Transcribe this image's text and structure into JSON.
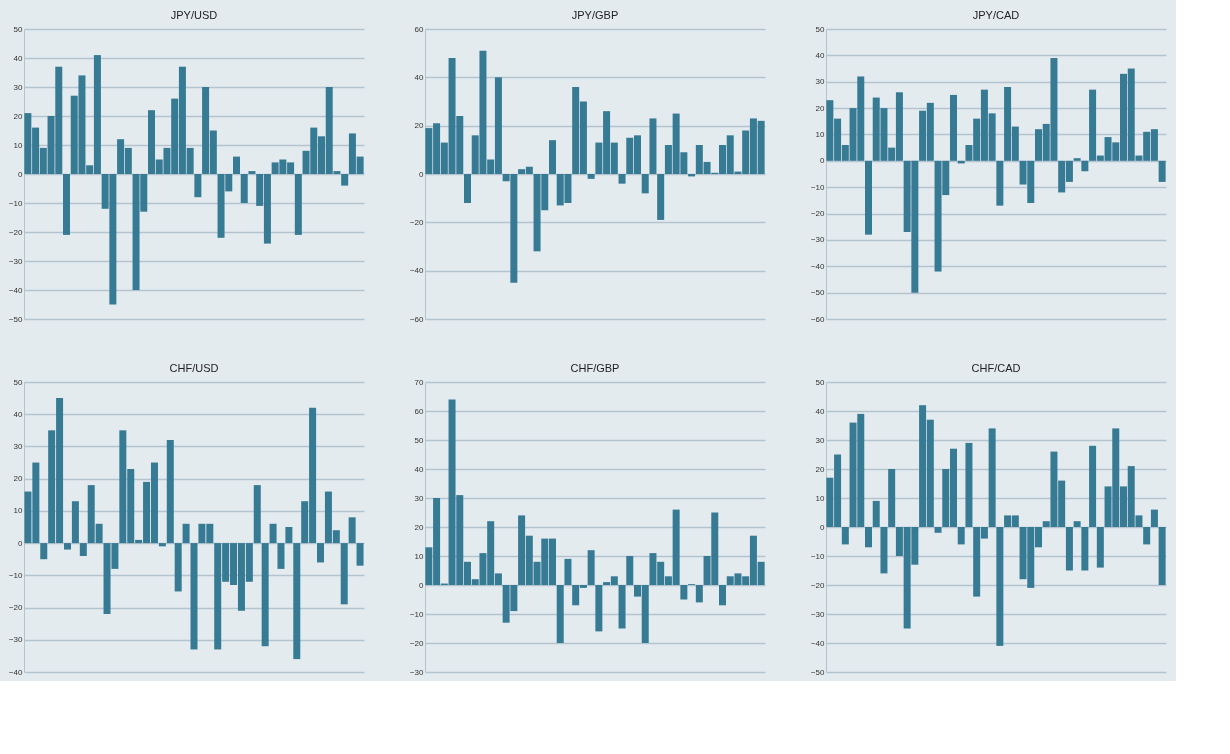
{
  "chart_data": [
    {
      "type": "bar",
      "title": "JPY/USD",
      "categories": [
        null,
        null,
        null,
        null,
        null,
        null,
        null,
        null,
        null,
        null,
        null,
        null,
        null,
        null,
        null,
        null,
        null,
        null,
        null,
        null,
        null,
        null,
        null,
        null,
        null,
        null,
        null,
        null,
        null,
        null,
        null,
        null,
        null,
        null,
        null,
        null,
        null,
        null,
        null,
        null,
        null,
        null,
        null,
        null
      ],
      "series": [
        {
          "color": "#367a94",
          "values": [
            21,
            16,
            9,
            20,
            37,
            -21,
            27,
            34,
            3,
            41,
            -12,
            -45,
            12,
            9,
            -40,
            -13,
            22,
            5,
            9,
            26,
            37,
            9,
            -8,
            30,
            15,
            -22,
            -6,
            6,
            -10,
            1,
            -11,
            -24,
            4,
            5,
            4,
            -21,
            8,
            16,
            13,
            30,
            1,
            -4,
            14,
            6
          ]
        }
      ],
      "ylim": [
        -50,
        50
      ],
      "yticks": [
        -50,
        -40,
        -30,
        -20,
        -10,
        0,
        10,
        20,
        30,
        40,
        50
      ],
      "grid": "y",
      "legend": false
    },
    {
      "type": "bar",
      "title": "JPY/GBP",
      "categories": [
        null,
        null,
        null,
        null,
        null,
        null,
        null,
        null,
        null,
        null,
        null,
        null,
        null,
        null,
        null,
        null,
        null,
        null,
        null,
        null,
        null,
        null,
        null,
        null,
        null,
        null,
        null,
        null,
        null,
        null,
        null,
        null,
        null,
        null,
        null,
        null,
        null,
        null,
        null,
        null,
        null,
        null,
        null,
        null
      ],
      "series": [
        {
          "color": "#367a94",
          "values": [
            19,
            21,
            13,
            48,
            24,
            -12,
            16,
            51,
            6,
            40,
            -3,
            -45,
            2,
            3,
            -32,
            -15,
            14,
            -13,
            -12,
            36,
            30,
            -2,
            13,
            26,
            13,
            -4,
            15,
            16,
            -8,
            23,
            -19,
            12,
            25,
            9,
            -1,
            12,
            5,
            0.5,
            12,
            16,
            1,
            18,
            23,
            22
          ]
        }
      ],
      "ylim": [
        -60,
        60
      ],
      "yticks": [
        -60,
        -40,
        -20,
        0,
        20,
        40,
        60
      ],
      "grid": "y",
      "legend": false
    },
    {
      "type": "bar",
      "title": "JPY/CAD",
      "categories": [
        null,
        null,
        null,
        null,
        null,
        null,
        null,
        null,
        null,
        null,
        null,
        null,
        null,
        null,
        null,
        null,
        null,
        null,
        null,
        null,
        null,
        null,
        null,
        null,
        null,
        null,
        null,
        null,
        null,
        null,
        null,
        null,
        null,
        null,
        null,
        null,
        null,
        null,
        null,
        null,
        null,
        null,
        null,
        null
      ],
      "series": [
        {
          "color": "#367a94",
          "values": [
            23,
            16,
            6,
            20,
            32,
            -28,
            24,
            20,
            5,
            26,
            -27,
            -50,
            19,
            22,
            -42,
            -13,
            25,
            -1,
            6,
            16,
            27,
            18,
            -17,
            28,
            13,
            -9,
            -16,
            12,
            14,
            39,
            -12,
            -8,
            1,
            -4,
            27,
            2,
            9,
            7,
            33,
            35,
            2,
            11,
            12,
            -8
          ]
        }
      ],
      "ylim": [
        -60,
        50
      ],
      "yticks": [
        -60,
        -50,
        -40,
        -30,
        -20,
        -10,
        0,
        10,
        20,
        30,
        40,
        50
      ],
      "grid": "y",
      "legend": false
    },
    {
      "type": "bar",
      "title": "CHF/USD",
      "categories": [
        null,
        null,
        null,
        null,
        null,
        null,
        null,
        null,
        null,
        null,
        null,
        null,
        null,
        null,
        null,
        null,
        null,
        null,
        null,
        null,
        null,
        null,
        null,
        null,
        null,
        null,
        null,
        null,
        null,
        null,
        null,
        null,
        null,
        null,
        null,
        null,
        null,
        null,
        null,
        null,
        null,
        null,
        null
      ],
      "series": [
        {
          "color": "#367a94",
          "values": [
            16,
            25,
            -5,
            35,
            45,
            -2,
            13,
            -4,
            18,
            6,
            -22,
            -8,
            35,
            23,
            1,
            19,
            25,
            -1,
            32,
            -15,
            6,
            -33,
            6,
            6,
            -33,
            -12,
            -13,
            -21,
            -12,
            18,
            -32,
            6,
            -8,
            5,
            -36,
            13,
            42,
            -6,
            16,
            4,
            -19,
            8,
            -7
          ]
        }
      ],
      "ylim": [
        -40,
        50
      ],
      "yticks": [
        -40,
        -30,
        -20,
        -10,
        0,
        10,
        20,
        30,
        40,
        50
      ],
      "grid": "y",
      "legend": false
    },
    {
      "type": "bar",
      "title": "CHF/GBP",
      "categories": [
        null,
        null,
        null,
        null,
        null,
        null,
        null,
        null,
        null,
        null,
        null,
        null,
        null,
        null,
        null,
        null,
        null,
        null,
        null,
        null,
        null,
        null,
        null,
        null,
        null,
        null,
        null,
        null,
        null,
        null,
        null,
        null,
        null,
        null,
        null,
        null,
        null,
        null,
        null,
        null,
        null,
        null,
        null,
        null
      ],
      "series": [
        {
          "color": "#367a94",
          "values": [
            13,
            30,
            0.5,
            64,
            31,
            8,
            2,
            11,
            22,
            4,
            -13,
            -9,
            24,
            17,
            8,
            16,
            16,
            -20,
            9,
            -7,
            -1,
            12,
            -16,
            1,
            3,
            -15,
            10,
            -4,
            -20,
            11,
            8,
            3,
            26,
            -5,
            0.3,
            -6,
            10,
            25,
            -7,
            3,
            4,
            3,
            17,
            8
          ]
        }
      ],
      "ylim": [
        -30,
        70
      ],
      "yticks": [
        -30,
        -20,
        -10,
        0,
        10,
        20,
        30,
        40,
        50,
        60,
        70
      ],
      "grid": "y",
      "legend": false
    },
    {
      "type": "bar",
      "title": "CHF/CAD",
      "categories": [
        null,
        null,
        null,
        null,
        null,
        null,
        null,
        null,
        null,
        null,
        null,
        null,
        null,
        null,
        null,
        null,
        null,
        null,
        null,
        null,
        null,
        null,
        null,
        null,
        null,
        null,
        null,
        null,
        null,
        null,
        null,
        null,
        null,
        null,
        null,
        null,
        null,
        null,
        null,
        null,
        null,
        null,
        null,
        null
      ],
      "series": [
        {
          "color": "#367a94",
          "values": [
            17,
            25,
            -6,
            36,
            39,
            -7,
            9,
            -16,
            20,
            -10,
            -35,
            -13,
            42,
            37,
            -2,
            20,
            27,
            -6,
            29,
            -24,
            -4,
            34,
            -41,
            4,
            4,
            -18,
            -21,
            -7,
            2,
            26,
            16,
            -15,
            2,
            -15,
            28,
            -14,
            14,
            34,
            14,
            21,
            4,
            -6,
            6,
            -20
          ]
        }
      ],
      "ylim": [
        -50,
        50
      ],
      "yticks": [
        -50,
        -40,
        -30,
        -20,
        -10,
        0,
        10,
        20,
        30,
        40,
        50
      ],
      "grid": "y",
      "legend": false
    }
  ]
}
